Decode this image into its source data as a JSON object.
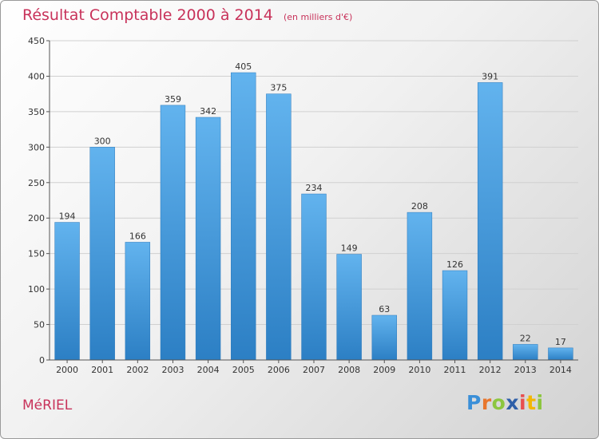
{
  "chart_data": {
    "type": "bar",
    "title": "Résultat Comptable 2000 à 2014",
    "subtitle": "(en milliers d'€)",
    "categories": [
      "2000",
      "2001",
      "2002",
      "2003",
      "2004",
      "2005",
      "2006",
      "2007",
      "2008",
      "2009",
      "2010",
      "2011",
      "2012",
      "2013",
      "2014"
    ],
    "values": [
      194,
      300,
      166,
      359,
      342,
      405,
      375,
      234,
      149,
      63,
      208,
      126,
      391,
      22,
      17
    ],
    "ylim": [
      0,
      450
    ],
    "yticks": [
      0,
      50,
      100,
      150,
      200,
      250,
      300,
      350,
      400,
      450
    ],
    "xlabel": "",
    "ylabel": "",
    "grid": true,
    "colors": {
      "bar_light": "#62b3ee",
      "bar_dark": "#2c7fc4",
      "grid": "#d0d0d0",
      "axis": "#555555"
    }
  },
  "place_name": "MéRIEL",
  "brand": {
    "letters": [
      "P",
      "r",
      "o",
      "x",
      "i",
      "t",
      "i"
    ],
    "colors": [
      "#3a8fd8",
      "#e8762c",
      "#8cc63f",
      "#2e5fa8",
      "#e84e4e",
      "#f2b705",
      "#8cc63f"
    ]
  }
}
